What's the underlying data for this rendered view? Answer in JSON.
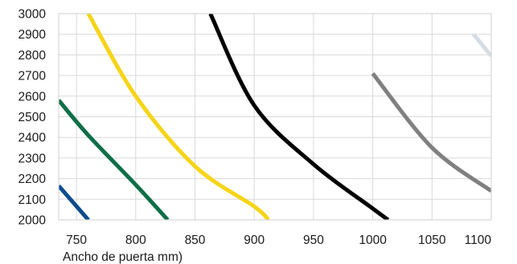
{
  "chart_data": {
    "type": "line",
    "xlabel": "Ancho de puerta mm)",
    "ylabel": "",
    "xlim": [
      735,
      1100
    ],
    "ylim": [
      2000,
      3000
    ],
    "x_ticks": [
      750,
      800,
      850,
      900,
      950,
      1000,
      1050,
      1100
    ],
    "y_ticks": [
      2000,
      2100,
      2200,
      2300,
      2400,
      2500,
      2600,
      2700,
      2800,
      2900,
      3000
    ],
    "grid": true,
    "series": [
      {
        "color": "#0e4c8c",
        "x": [
          735,
          760
        ],
        "y": [
          2165,
          2000
        ]
      },
      {
        "color": "#0e6e47",
        "x": [
          735,
          760,
          800,
          827
        ],
        "y": [
          2580,
          2410,
          2170,
          2000
        ]
      },
      {
        "color": "#f7d417",
        "x": [
          760,
          800,
          850,
          900,
          912
        ],
        "y": [
          3000,
          2600,
          2260,
          2065,
          2000
        ]
      },
      {
        "color": "#000000",
        "x": [
          863,
          900,
          950,
          1000,
          1013
        ],
        "y": [
          3000,
          2555,
          2270,
          2055,
          2000
        ]
      },
      {
        "color": "#808080",
        "x": [
          1000,
          1050,
          1100
        ],
        "y": [
          2710,
          2350,
          2140
        ]
      },
      {
        "color": "#d5dde3",
        "x": [
          1085,
          1100
        ],
        "y": [
          2900,
          2795
        ]
      }
    ]
  }
}
